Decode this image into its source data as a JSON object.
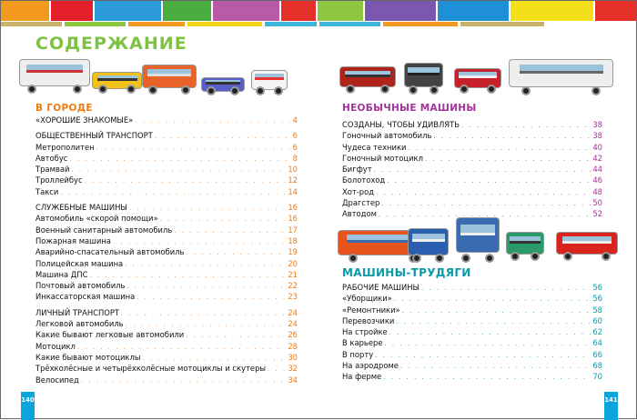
{
  "header": {
    "band_colors": [
      "#f39a1e",
      "#e5202a",
      "#2a9ad8",
      "#49ad3f",
      "#b85aa6",
      "#e5302a",
      "#8dc63f",
      "#7b58b0",
      "#1f8fd6",
      "#f3e01a",
      "#e5302a"
    ],
    "strip_colors": [
      "#c8b36c",
      "#8dc63f",
      "#f39a1e",
      "#f3d21a",
      "#3bb6d8",
      "#3bb6d8",
      "#f39a1e",
      "#c8b36c"
    ]
  },
  "title": "СОДЕРЖАНИЕ",
  "colors": {
    "left_accent": "#f07a12",
    "unusual_accent": "#a3329a",
    "workers_accent": "#0a9aa8",
    "page_box": "#0aa5dc"
  },
  "images_left": [
    "bus",
    "taxi",
    "tram",
    "car",
    "ambulance"
  ],
  "images_right_top": [
    "hot-rod",
    "swamp-vehicle",
    "race-car",
    "motorhome"
  ],
  "images_right_mid": [
    "truck",
    "tractor",
    "crane",
    "paver",
    "fire-truck"
  ],
  "left": {
    "heading": "В ГОРОДЕ",
    "items": [
      {
        "label": "«ХОРОШИЕ ЗНАКОМЫЕ»",
        "page": "4",
        "kind": "section"
      },
      {
        "label": "ОБЩЕСТВЕННЫЙ ТРАНСПОРТ",
        "page": "6",
        "kind": "section"
      },
      {
        "label": "Метрополитен",
        "page": "6",
        "kind": "item"
      },
      {
        "label": "Автобус",
        "page": "8",
        "kind": "item"
      },
      {
        "label": "Трамвай",
        "page": "10",
        "kind": "item"
      },
      {
        "label": "Троллейбус",
        "page": "12",
        "kind": "item"
      },
      {
        "label": "Такси",
        "page": "14",
        "kind": "item"
      },
      {
        "label": "СЛУЖЕБНЫЕ МАШИНЫ",
        "page": "16",
        "kind": "section"
      },
      {
        "label": "Автомобиль «скорой помощи»",
        "page": "16",
        "kind": "item"
      },
      {
        "label": "Военный санитарный автомобиль",
        "page": "17",
        "kind": "item"
      },
      {
        "label": "Пожарная машина",
        "page": "18",
        "kind": "item"
      },
      {
        "label": "Аварийно-спасательный автомобиль",
        "page": "19",
        "kind": "item"
      },
      {
        "label": "Полицейская машина",
        "page": "20",
        "kind": "item"
      },
      {
        "label": "Машина ДПС",
        "page": "21",
        "kind": "item"
      },
      {
        "label": "Почтовый автомобиль",
        "page": "22",
        "kind": "item"
      },
      {
        "label": "Инкассаторская машина",
        "page": "23",
        "kind": "item"
      },
      {
        "label": "ЛИЧНЫЙ ТРАНСПОРТ",
        "page": "24",
        "kind": "section"
      },
      {
        "label": "Легковой автомобиль",
        "page": "24",
        "kind": "item"
      },
      {
        "label": "Какие бывают легковые автомобили",
        "page": "26",
        "kind": "item"
      },
      {
        "label": "Мотоцикл",
        "page": "28",
        "kind": "item"
      },
      {
        "label": "Какие бывают мотоциклы",
        "page": "30",
        "kind": "item"
      },
      {
        "label": "Трёхколёсные и четырёхколёсные мотоциклы и скутеры",
        "page": "32",
        "kind": "item"
      },
      {
        "label": "Велосипед",
        "page": "34",
        "kind": "item"
      }
    ]
  },
  "unusual": {
    "heading": "НЕОБЫЧНЫЕ МАШИНЫ",
    "items": [
      {
        "label": "СОЗДАНЫ, ЧТОБЫ  УДИВЛЯТЬ",
        "page": "38",
        "kind": "section"
      },
      {
        "label": "Гоночный автомобиль",
        "page": "38",
        "kind": "item"
      },
      {
        "label": "Чудеса техники",
        "page": "40",
        "kind": "item"
      },
      {
        "label": "Гоночный мотоцикл",
        "page": "42",
        "kind": "item"
      },
      {
        "label": "Бигфут",
        "page": "44",
        "kind": "item"
      },
      {
        "label": "Болотоход",
        "page": "46",
        "kind": "item"
      },
      {
        "label": "Хот-род",
        "page": "48",
        "kind": "item"
      },
      {
        "label": "Драгстер",
        "page": "50",
        "kind": "item"
      },
      {
        "label": "Автодом",
        "page": "52",
        "kind": "item"
      }
    ]
  },
  "workers": {
    "heading": "МАШИНЫ-ТРУДЯГИ",
    "items": [
      {
        "label": "РАБОЧИЕ МАШИНЫ",
        "page": "56",
        "kind": "section"
      },
      {
        "label": "«Уборщики»",
        "page": "56",
        "kind": "item"
      },
      {
        "label": "«Ремонтники»",
        "page": "58",
        "kind": "item"
      },
      {
        "label": "Перевозчики",
        "page": "60",
        "kind": "item"
      },
      {
        "label": "На стройке",
        "page": "62",
        "kind": "item"
      },
      {
        "label": "В карьере",
        "page": "64",
        "kind": "item"
      },
      {
        "label": "В порту",
        "page": "66",
        "kind": "item"
      },
      {
        "label": "На аэродроме",
        "page": "68",
        "kind": "item"
      },
      {
        "label": "На ферме",
        "page": "70",
        "kind": "item"
      }
    ]
  },
  "page_numbers": {
    "left": "140",
    "right": "141"
  }
}
